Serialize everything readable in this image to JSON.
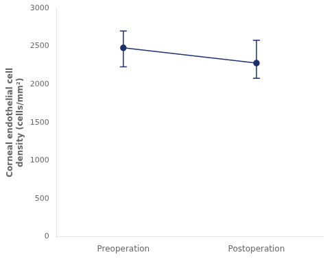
{
  "chart_data": {
    "type": "line",
    "categories": [
      "Preoperation",
      "Postoperation"
    ],
    "values": [
      2480,
      2280
    ],
    "errors_upper": [
      220,
      300
    ],
    "errors_lower": [
      250,
      200
    ],
    "color": "#1e3070",
    "marker": "circle",
    "ylabel": "Corneal endothelial cell\ndensity (cells/mm²)",
    "ylim": [
      0,
      3000
    ],
    "yticks": [
      0,
      500,
      1000,
      1500,
      2000,
      2500,
      3000
    ],
    "grid": false
  }
}
